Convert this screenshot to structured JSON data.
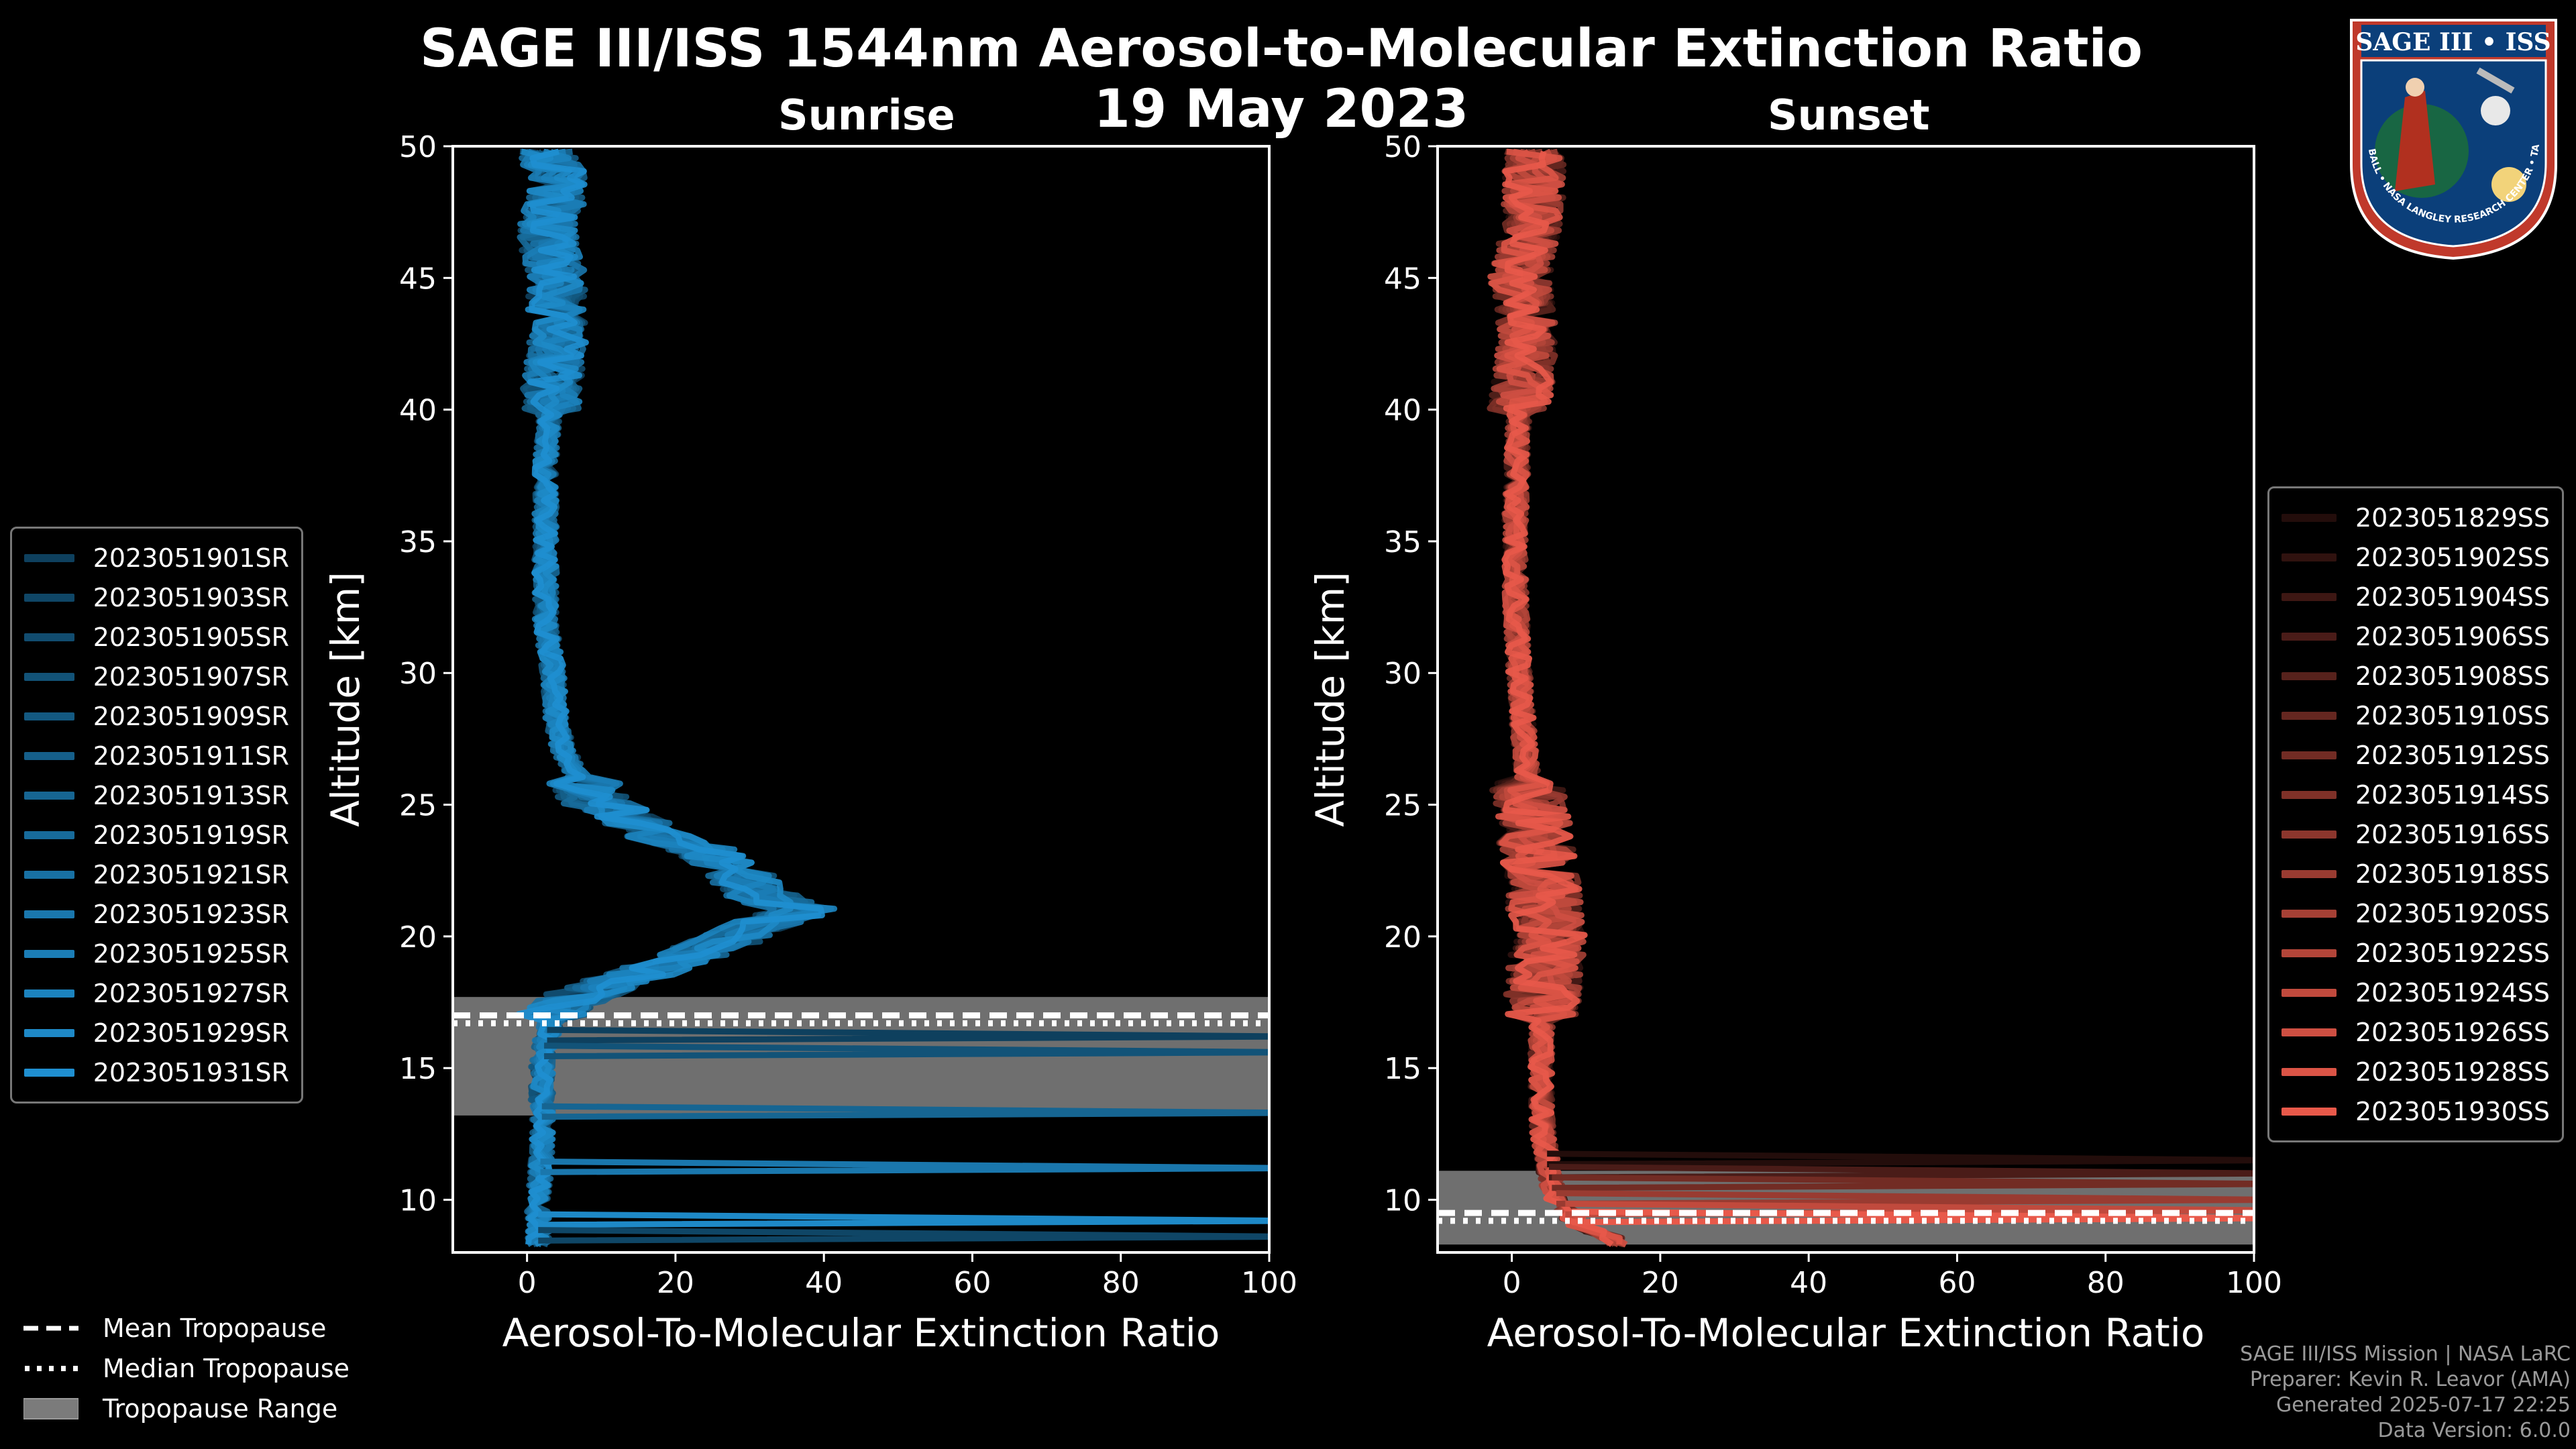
{
  "header": {
    "title": "SAGE III/ISS 1544nm Aerosol-to-Molecular Extinction Ratio",
    "date": "19 May 2023"
  },
  "colors": {
    "background": "#000000",
    "sunrise_line": "#1f8fd0",
    "sunset_line": "#e8594a",
    "tropopause_band": "#7b7b7b"
  },
  "logo": {
    "text": "SAGE III • ISS",
    "ring_text": "BALL • NASA LANGLEY RESEARCH CENTER • TAS-I • ESA"
  },
  "chart_data": [
    {
      "type": "line",
      "panel": "Sunrise",
      "title": "Sunrise",
      "xlabel": "Aerosol-To-Molecular Extinction Ratio",
      "ylabel": "Altitude [km]",
      "xlim": [
        -10,
        100
      ],
      "ylim": [
        8,
        50
      ],
      "xticks": [
        0,
        20,
        40,
        60,
        80,
        100
      ],
      "yticks": [
        10,
        15,
        20,
        25,
        30,
        35,
        40,
        45,
        50
      ],
      "tropopause": {
        "mean": 17.0,
        "median": 16.7,
        "range": [
          13.2,
          17.7
        ]
      },
      "profile_envelope": {
        "altitude": [
          8.5,
          10,
          12,
          14,
          15,
          16,
          17,
          17.5,
          18,
          19,
          20,
          20.5,
          21,
          21.5,
          22,
          22.5,
          23,
          23.5,
          24,
          25,
          26,
          27,
          28,
          30,
          32,
          35,
          38,
          40,
          42,
          44,
          45,
          46,
          47,
          48,
          49,
          49.5
        ],
        "ratio": [
          1.5,
          1.5,
          2,
          2,
          2,
          2.5,
          3.5,
          5,
          9,
          20,
          28,
          32,
          37,
          32,
          30,
          29,
          26,
          22,
          16,
          10,
          7,
          5,
          4,
          3.5,
          2.5,
          2.5,
          2.5,
          3,
          4,
          4,
          4,
          3,
          3,
          4,
          4,
          3
        ]
      },
      "series": [
        {
          "name": "2023051901SR"
        },
        {
          "name": "2023051903SR"
        },
        {
          "name": "2023051905SR"
        },
        {
          "name": "2023051907SR"
        },
        {
          "name": "2023051909SR"
        },
        {
          "name": "2023051911SR"
        },
        {
          "name": "2023051913SR"
        },
        {
          "name": "2023051919SR"
        },
        {
          "name": "2023051921SR"
        },
        {
          "name": "2023051923SR"
        },
        {
          "name": "2023051925SR"
        },
        {
          "name": "2023051927SR"
        },
        {
          "name": "2023051929SR"
        },
        {
          "name": "2023051931SR"
        }
      ],
      "spikes_km": [
        16.2,
        15.6,
        13.3,
        11.2,
        9.2,
        8.6
      ]
    },
    {
      "type": "line",
      "panel": "Sunset",
      "title": "Sunset",
      "xlabel": "Aerosol-To-Molecular Extinction Ratio",
      "ylabel": "Altitude [km]",
      "xlim": [
        -10,
        100
      ],
      "ylim": [
        8,
        50
      ],
      "xticks": [
        0,
        20,
        40,
        60,
        80,
        100
      ],
      "yticks": [
        10,
        15,
        20,
        25,
        30,
        35,
        40,
        45,
        50
      ],
      "tropopause": {
        "mean": 9.5,
        "median": 9.2,
        "range": [
          8.3,
          11.1
        ]
      },
      "profile_envelope": {
        "altitude": [
          8.5,
          9,
          10,
          11,
          12,
          13,
          15,
          17,
          19,
          20,
          21,
          22,
          23,
          24,
          25,
          28,
          30,
          33,
          36,
          40,
          42,
          44,
          45,
          46,
          48,
          49.5
        ],
        "ratio": [
          14,
          9,
          6,
          5,
          4.5,
          4,
          4,
          4,
          4.5,
          5,
          4.5,
          4,
          3.5,
          3,
          2.5,
          1.5,
          1,
          0.5,
          0.5,
          1,
          2,
          2,
          1,
          2,
          3,
          3
        ]
      },
      "series": [
        {
          "name": "2023051829SS"
        },
        {
          "name": "2023051902SS"
        },
        {
          "name": "2023051904SS"
        },
        {
          "name": "2023051906SS"
        },
        {
          "name": "2023051908SS"
        },
        {
          "name": "2023051910SS"
        },
        {
          "name": "2023051912SS"
        },
        {
          "name": "2023051914SS"
        },
        {
          "name": "2023051916SS"
        },
        {
          "name": "2023051918SS"
        },
        {
          "name": "2023051920SS"
        },
        {
          "name": "2023051922SS"
        },
        {
          "name": "2023051924SS"
        },
        {
          "name": "2023051926SS"
        },
        {
          "name": "2023051928SS"
        },
        {
          "name": "2023051930SS"
        }
      ],
      "spikes_km": [
        11.5,
        11.0,
        10.6,
        10.0,
        9.6,
        9.3
      ]
    }
  ],
  "tropopause_legend": {
    "mean": "Mean Tropopause",
    "median": "Median Tropopause",
    "range": "Tropopause Range"
  },
  "footer": {
    "line1": "SAGE III/ISS Mission | NASA LaRC",
    "line2": "Preparer: Kevin R. Leavor (AMA)",
    "line3": "Generated 2025-07-17 22:25",
    "line4": "Data Version: 6.0.0"
  }
}
